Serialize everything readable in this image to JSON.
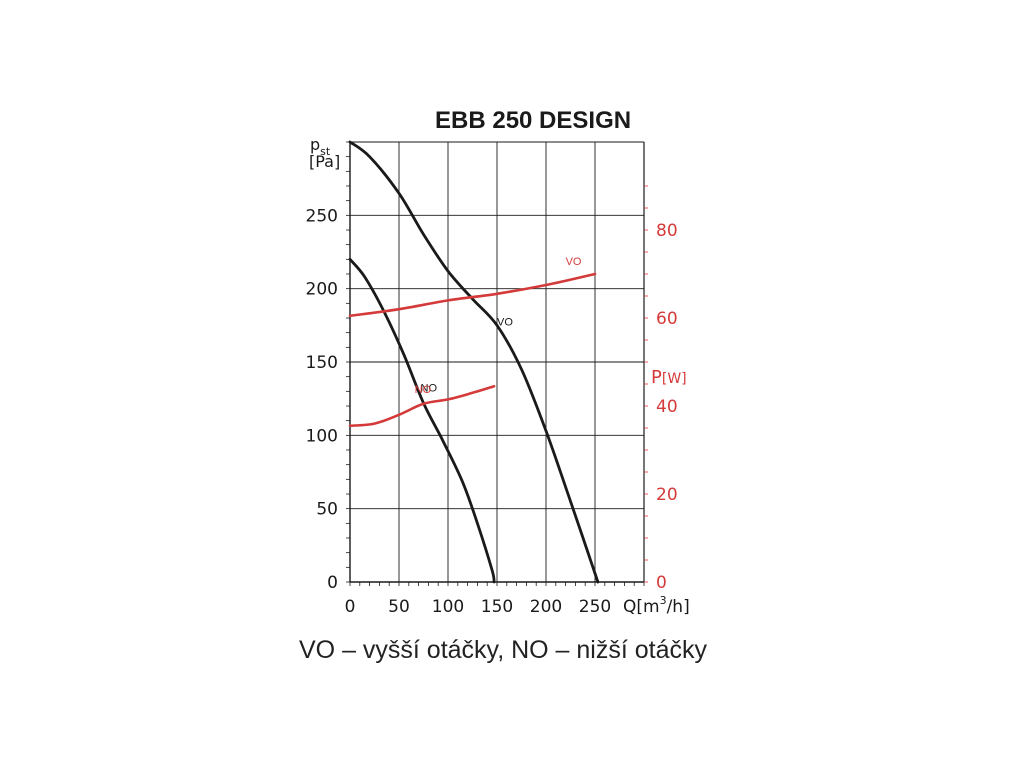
{
  "chart_data": {
    "type": "line",
    "title": "EBB 250 DESIGN",
    "caption": "VO – vyšší otáčky, NO – nižší otáčky",
    "xlabel": "Q[m³/h]",
    "xlabel_main": "Q[m",
    "xlabel_sup": "3",
    "xlabel_tail": "/h]",
    "ylabel_main": "p",
    "ylabel_sub": "st",
    "ylabel_unit": "[Pa]",
    "y2label_main": "P",
    "y2label_unit": "[W]",
    "xlim": [
      0,
      300
    ],
    "ylim": [
      0,
      300
    ],
    "y2lim": [
      0,
      100
    ],
    "x_ticks": [
      0,
      50,
      100,
      150,
      200,
      250
    ],
    "y_ticks": [
      0,
      50,
      100,
      150,
      200,
      250
    ],
    "y2_ticks": [
      0,
      20,
      40,
      60,
      80
    ],
    "grid": true,
    "colors": {
      "pressure": "#1a1a1a",
      "power": "#d43a3a"
    },
    "series": [
      {
        "name": "VO",
        "axis": "pressure",
        "x": [
          0,
          20,
          50,
          75,
          100,
          125,
          150,
          175,
          200,
          225,
          253
        ],
        "y": [
          300,
          290,
          265,
          237,
          212,
          193,
          175,
          145,
          103,
          55,
          0
        ]
      },
      {
        "name": "NO",
        "axis": "pressure",
        "x": [
          0,
          15,
          35,
          55,
          75,
          95,
          115,
          130,
          145,
          147
        ],
        "y": [
          220,
          208,
          184,
          155,
          122,
          96,
          68,
          40,
          8,
          0
        ]
      },
      {
        "name": "VO",
        "axis": "power",
        "x": [
          0,
          50,
          100,
          150,
          200,
          250
        ],
        "y": [
          60.5,
          62,
          64,
          65.5,
          67.5,
          70
        ]
      },
      {
        "name": "NO",
        "axis": "power",
        "x": [
          0,
          25,
          50,
          75,
          100,
          125,
          147
        ],
        "y": [
          35.5,
          36,
          38,
          40.5,
          41.5,
          43,
          44.5
        ]
      }
    ]
  }
}
